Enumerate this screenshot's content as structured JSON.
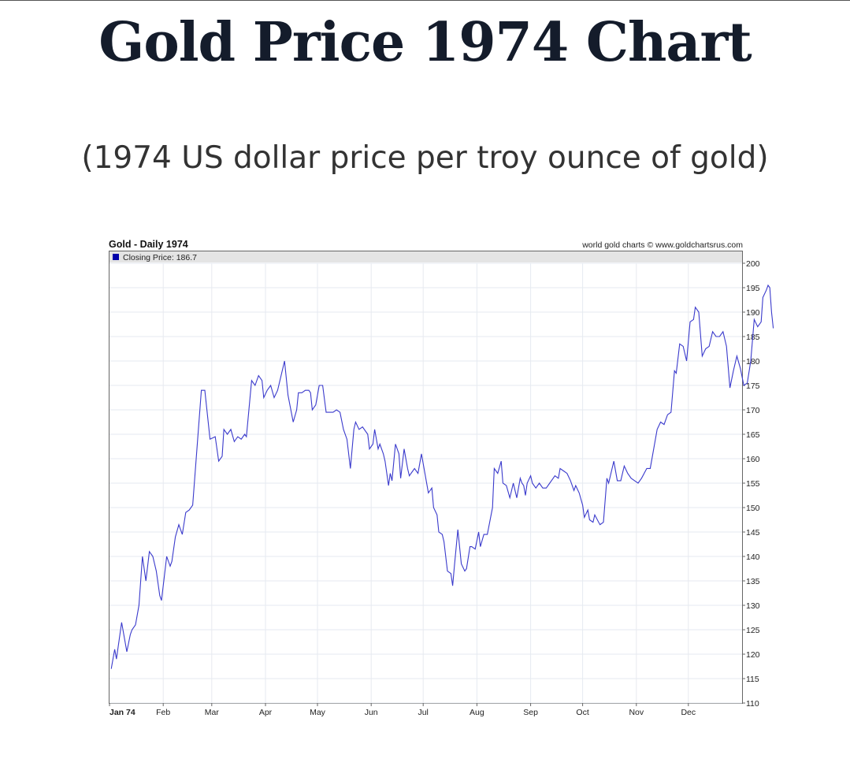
{
  "page": {
    "title": "Gold Price 1974 Chart",
    "subtitle": "(1974 US dollar price per troy ounce of gold)"
  },
  "chart_data": {
    "type": "line",
    "title": "Gold - Daily 1974",
    "source": "world gold charts © www.goldchartsrus.com",
    "legend_label": "Closing Price: 186.7",
    "legend_position": "top-left",
    "line_color": "#3a3acc",
    "grid": true,
    "ylim": [
      110,
      200
    ],
    "yticks": [
      110,
      115,
      120,
      125,
      130,
      135,
      140,
      145,
      150,
      155,
      160,
      165,
      170,
      175,
      180,
      185,
      190,
      195,
      200
    ],
    "xlim": [
      0,
      365
    ],
    "xticks": [
      {
        "label": "Jan 74",
        "day": 0
      },
      {
        "label": "Feb",
        "day": 31
      },
      {
        "label": "Mar",
        "day": 59
      },
      {
        "label": "Apr",
        "day": 90
      },
      {
        "label": "May",
        "day": 120
      },
      {
        "label": "Jun",
        "day": 151
      },
      {
        "label": "Jul",
        "day": 181
      },
      {
        "label": "Aug",
        "day": 212
      },
      {
        "label": "Sep",
        "day": 243
      },
      {
        "label": "Oct",
        "day": 273
      },
      {
        "label": "Nov",
        "day": 304
      },
      {
        "label": "Dec",
        "day": 334
      }
    ],
    "series": [
      {
        "name": "Closing Price",
        "points": [
          [
            1,
            117
          ],
          [
            3,
            121
          ],
          [
            4,
            119
          ],
          [
            7,
            126.5
          ],
          [
            10,
            120.5
          ],
          [
            12,
            124
          ],
          [
            13,
            125
          ],
          [
            15,
            126
          ],
          [
            17,
            130
          ],
          [
            19,
            140
          ],
          [
            21,
            135
          ],
          [
            23,
            141
          ],
          [
            25,
            140
          ],
          [
            27,
            137
          ],
          [
            29,
            132
          ],
          [
            30,
            131
          ],
          [
            31,
            134
          ],
          [
            33,
            140
          ],
          [
            35,
            138
          ],
          [
            36,
            139
          ],
          [
            38,
            144
          ],
          [
            40,
            146.5
          ],
          [
            42,
            144.5
          ],
          [
            44,
            149
          ],
          [
            46,
            149.5
          ],
          [
            48,
            150.5
          ],
          [
            53,
            174
          ],
          [
            55,
            174
          ],
          [
            58,
            164
          ],
          [
            61,
            164.5
          ],
          [
            63,
            159.5
          ],
          [
            65,
            160.5
          ],
          [
            66,
            166
          ],
          [
            68,
            165
          ],
          [
            70,
            166
          ],
          [
            72,
            163.5
          ],
          [
            74,
            164.5
          ],
          [
            76,
            164
          ],
          [
            78,
            165
          ],
          [
            79,
            164.5
          ],
          [
            82,
            176
          ],
          [
            84,
            175
          ],
          [
            86,
            177
          ],
          [
            88,
            176
          ],
          [
            89,
            172.5
          ],
          [
            91,
            174
          ],
          [
            93,
            175
          ],
          [
            95,
            172.5
          ],
          [
            97,
            174
          ],
          [
            99,
            177
          ],
          [
            101,
            180
          ],
          [
            103,
            173
          ],
          [
            106,
            167.5
          ],
          [
            108,
            170
          ],
          [
            109,
            173.5
          ],
          [
            111,
            173.5
          ],
          [
            113,
            174
          ],
          [
            115,
            174
          ],
          [
            116,
            173.5
          ],
          [
            117,
            170
          ],
          [
            119,
            171
          ],
          [
            121,
            175
          ],
          [
            123,
            175
          ],
          [
            125,
            169.5
          ],
          [
            127,
            169.5
          ],
          [
            129,
            169.5
          ],
          [
            131,
            170
          ],
          [
            133,
            169.5
          ],
          [
            135,
            166
          ],
          [
            137,
            164
          ],
          [
            139,
            158
          ],
          [
            141,
            166
          ],
          [
            142,
            167.5
          ],
          [
            144,
            166
          ],
          [
            146,
            166.5
          ],
          [
            149,
            165
          ],
          [
            150,
            162
          ],
          [
            152,
            163
          ],
          [
            153,
            166
          ],
          [
            155,
            162
          ],
          [
            156,
            163
          ],
          [
            158,
            161
          ],
          [
            159,
            159.5
          ],
          [
            161,
            154.5
          ],
          [
            162,
            157
          ],
          [
            163,
            155.5
          ],
          [
            165,
            163
          ],
          [
            167,
            161
          ],
          [
            168,
            156
          ],
          [
            170,
            162
          ],
          [
            171,
            160
          ],
          [
            172,
            158
          ],
          [
            173,
            156.5
          ],
          [
            175,
            157.5
          ],
          [
            176,
            158
          ],
          [
            178,
            157
          ],
          [
            180,
            161
          ],
          [
            182,
            157
          ],
          [
            184,
            153
          ],
          [
            186,
            154
          ],
          [
            187,
            150
          ],
          [
            189,
            148.5
          ],
          [
            190,
            145
          ],
          [
            192,
            144.5
          ],
          [
            193,
            143
          ],
          [
            195,
            137
          ],
          [
            197,
            136.5
          ],
          [
            198,
            134
          ],
          [
            199,
            138
          ],
          [
            201,
            145.5
          ],
          [
            203,
            138.5
          ],
          [
            205,
            137
          ],
          [
            206,
            137.5
          ],
          [
            208,
            142
          ],
          [
            209,
            142
          ],
          [
            211,
            141.5
          ],
          [
            213,
            145
          ],
          [
            214,
            142
          ],
          [
            216,
            144.5
          ],
          [
            218,
            144.5
          ],
          [
            221,
            150
          ],
          [
            222,
            158
          ],
          [
            224,
            157
          ],
          [
            226,
            159.5
          ],
          [
            227,
            155
          ],
          [
            229,
            154.5
          ],
          [
            231,
            152
          ],
          [
            233,
            155
          ],
          [
            235,
            152
          ],
          [
            237,
            156
          ],
          [
            238,
            155
          ],
          [
            239,
            154.5
          ],
          [
            240,
            152.5
          ],
          [
            241,
            155
          ],
          [
            243,
            156.5
          ],
          [
            244,
            155
          ],
          [
            246,
            154
          ],
          [
            248,
            155
          ],
          [
            250,
            154
          ],
          [
            252,
            154
          ],
          [
            254,
            155
          ],
          [
            255,
            155.5
          ],
          [
            257,
            156.5
          ],
          [
            259,
            156
          ],
          [
            260,
            158
          ],
          [
            262,
            157.5
          ],
          [
            264,
            157
          ],
          [
            266,
            155.5
          ],
          [
            268,
            153.5
          ],
          [
            269,
            154.5
          ],
          [
            271,
            153
          ],
          [
            273,
            150.5
          ],
          [
            274,
            148
          ],
          [
            276,
            149.5
          ],
          [
            277,
            147.5
          ],
          [
            279,
            147
          ],
          [
            280,
            148.5
          ],
          [
            283,
            146.5
          ],
          [
            285,
            147
          ],
          [
            287,
            156
          ],
          [
            288,
            155
          ],
          [
            290,
            158
          ],
          [
            291,
            159.5
          ],
          [
            293,
            155.5
          ],
          [
            295,
            155.5
          ],
          [
            297,
            158.5
          ],
          [
            299,
            157
          ],
          [
            301,
            156
          ],
          [
            303,
            155.5
          ],
          [
            305,
            155
          ],
          [
            307,
            156
          ],
          [
            310,
            158
          ],
          [
            312,
            158
          ],
          [
            314,
            162
          ],
          [
            316,
            166
          ],
          [
            318,
            167.5
          ],
          [
            320,
            167
          ],
          [
            322,
            169
          ],
          [
            324,
            169.5
          ],
          [
            326,
            178
          ],
          [
            327,
            177.5
          ],
          [
            329,
            183.5
          ],
          [
            331,
            183
          ],
          [
            333,
            180
          ],
          [
            335,
            188
          ],
          [
            337,
            188.5
          ],
          [
            338,
            191
          ],
          [
            340,
            190
          ],
          [
            342,
            181
          ],
          [
            344,
            182.5
          ],
          [
            346,
            183
          ],
          [
            348,
            186
          ],
          [
            350,
            185
          ],
          [
            352,
            185
          ],
          [
            354,
            186
          ],
          [
            356,
            183
          ],
          [
            358,
            174.5
          ],
          [
            360,
            178
          ],
          [
            362,
            181
          ],
          [
            364,
            178.5
          ],
          [
            366,
            175
          ],
          [
            368,
            175.5
          ],
          [
            370,
            180
          ],
          [
            372,
            188.5
          ],
          [
            374,
            187
          ],
          [
            376,
            188
          ],
          [
            377,
            193
          ],
          [
            379,
            194.5
          ],
          [
            380,
            195.5
          ],
          [
            381,
            195
          ],
          [
            382,
            190
          ],
          [
            383,
            186.7
          ]
        ]
      }
    ]
  }
}
